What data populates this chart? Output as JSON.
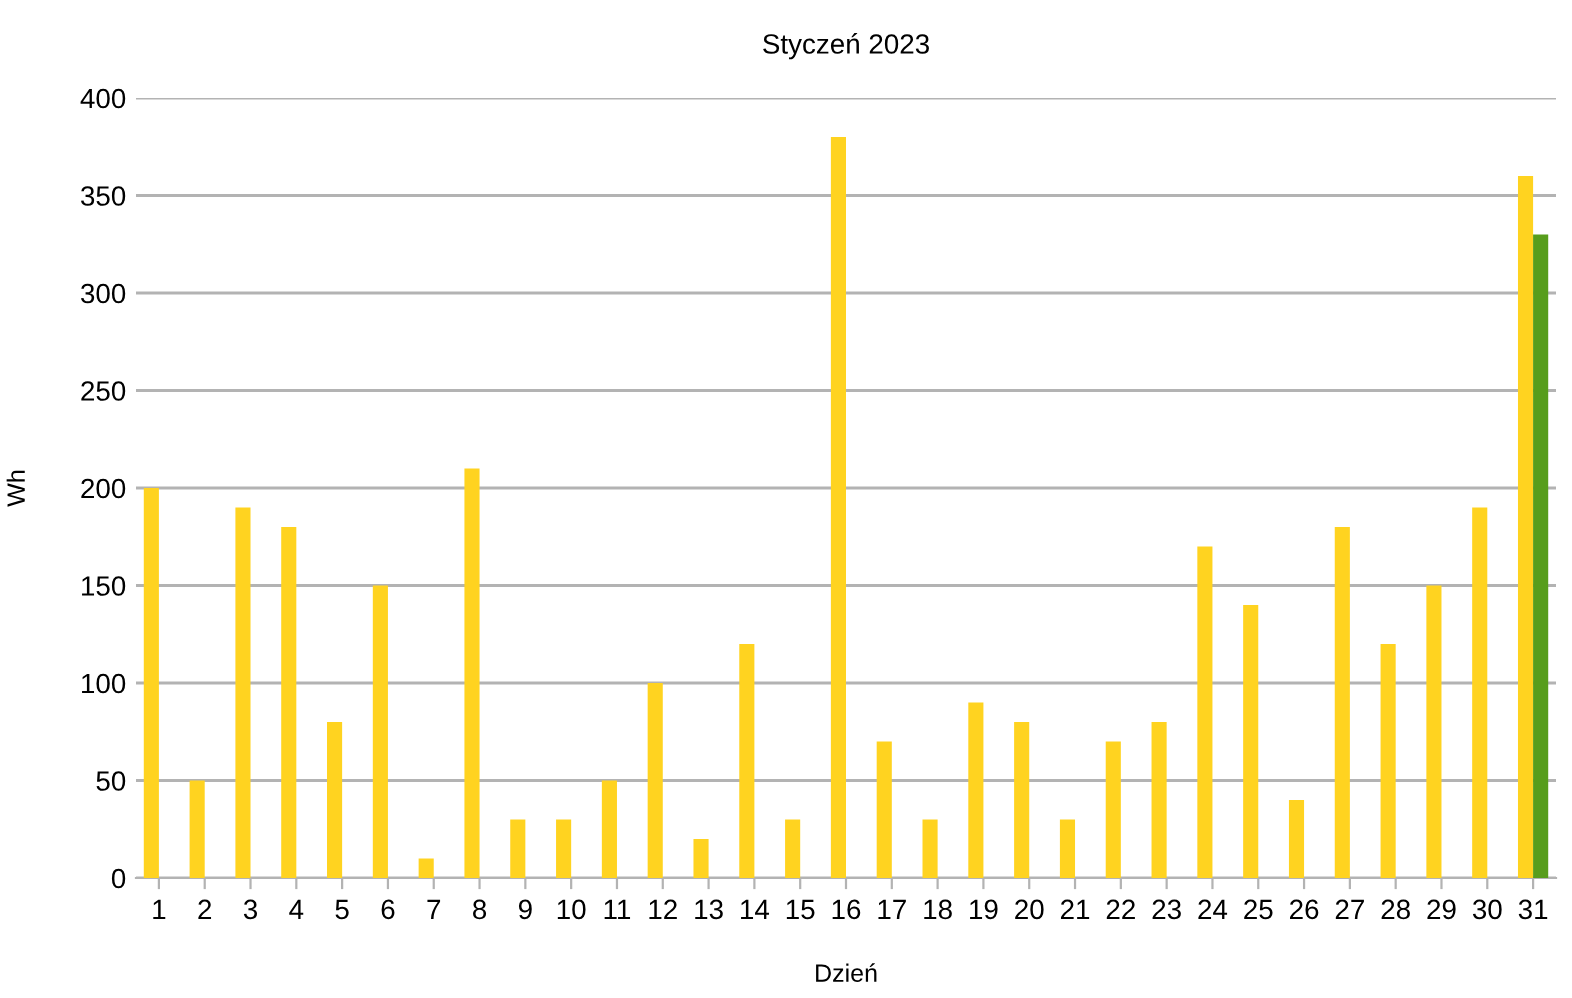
{
  "chart_data": {
    "type": "bar",
    "title": "Styczeń 2023",
    "xlabel": "Dzień",
    "ylabel": "Wh",
    "categories": [
      "1",
      "2",
      "3",
      "4",
      "5",
      "6",
      "7",
      "8",
      "9",
      "10",
      "11",
      "12",
      "13",
      "14",
      "15",
      "16",
      "17",
      "18",
      "19",
      "20",
      "21",
      "22",
      "23",
      "24",
      "25",
      "26",
      "27",
      "28",
      "29",
      "30",
      "31"
    ],
    "series": [
      {
        "color": "#ffd320",
        "values": [
          200,
          50,
          190,
          180,
          80,
          150,
          10,
          210,
          30,
          30,
          50,
          100,
          20,
          120,
          30,
          380,
          70,
          30,
          90,
          80,
          30,
          70,
          80,
          170,
          140,
          40,
          180,
          120,
          150,
          190,
          360
        ]
      },
      {
        "color": "#579d1c",
        "values": [
          null,
          null,
          null,
          null,
          null,
          null,
          null,
          null,
          null,
          null,
          null,
          null,
          null,
          null,
          null,
          null,
          null,
          null,
          null,
          null,
          null,
          null,
          null,
          null,
          null,
          null,
          null,
          null,
          null,
          null,
          330
        ]
      }
    ],
    "ylim": [
      0,
      400
    ],
    "yticks": [
      0,
      50,
      100,
      150,
      200,
      250,
      300,
      350,
      400
    ],
    "grid": "y",
    "legend": false
  }
}
